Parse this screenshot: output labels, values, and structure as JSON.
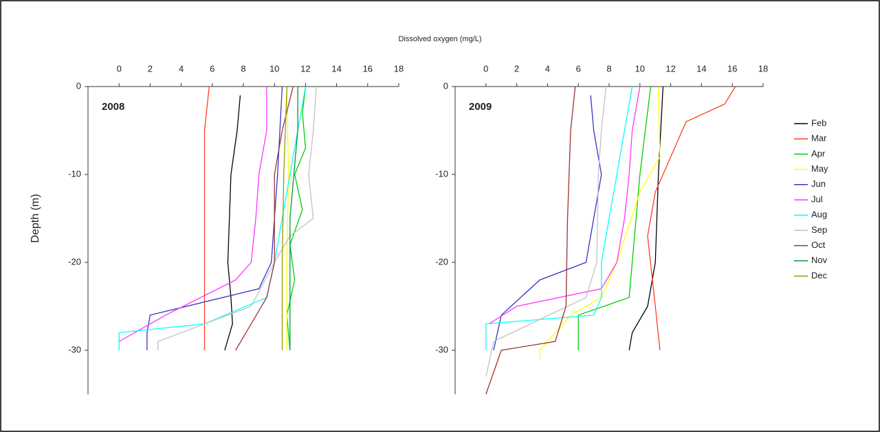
{
  "title": "Dissolved oxygen (mg/L)",
  "ylabel": "Depth (m)",
  "chart_data": [
    {
      "type": "line",
      "title": "2008",
      "xlim": [
        -2,
        18
      ],
      "xticks": [
        0,
        2,
        4,
        6,
        8,
        10,
        12,
        14,
        16,
        18
      ],
      "ylim": [
        -35,
        0
      ],
      "yticks": [
        0,
        -10,
        -20,
        -30
      ],
      "series": [
        {
          "name": "Feb",
          "color": "#000000",
          "x": [
            7.8,
            7.6,
            7.2,
            7.1,
            7,
            7.2,
            7.3,
            6.8
          ],
          "values": [
            -1,
            -5,
            -10,
            -15,
            -20,
            -24,
            -27,
            -30
          ]
        },
        {
          "name": "Mar",
          "color": "#ff3c1e",
          "x": [
            5.8,
            5.5,
            5.5
          ],
          "values": [
            0,
            -5,
            -30
          ]
        },
        {
          "name": "Apr",
          "color": "#00cc00",
          "x": [
            12,
            11.8,
            12,
            11.3,
            11.8,
            11,
            11.3,
            10.8,
            11
          ],
          "values": [
            0,
            -3,
            -7,
            -10,
            -14,
            -18,
            -22,
            -26,
            -30
          ]
        },
        {
          "name": "May",
          "color": "#ffff00",
          "x": [
            10.8,
            10.9,
            10.8,
            10.8
          ],
          "values": [
            0,
            -10,
            -20,
            -30
          ]
        },
        {
          "name": "Jun",
          "color": "#3333cc",
          "x": [
            10.5,
            10.2,
            9.8,
            9,
            2,
            1.8,
            1.8
          ],
          "values": [
            0,
            -10,
            -20,
            -23,
            -26,
            -28,
            -30
          ]
        },
        {
          "name": "Jul",
          "color": "#ff33ff",
          "x": [
            9.5,
            9.5,
            9,
            8.8,
            8.5,
            7.5,
            3,
            0
          ],
          "values": [
            0,
            -5,
            -10,
            -15,
            -20,
            -22,
            -26,
            -29
          ]
        },
        {
          "name": "Aug",
          "color": "#00ffff",
          "x": [
            12,
            11,
            10.5,
            10,
            9.5,
            5.5,
            0,
            0
          ],
          "values": [
            0,
            -10,
            -15,
            -20,
            -24,
            -27,
            -28,
            -30
          ]
        },
        {
          "name": "Sep",
          "color": "#c0c0c0",
          "x": [
            12.7,
            12.5,
            12.2,
            12.5,
            11,
            10,
            8.5,
            2.5,
            2.5
          ],
          "values": [
            0,
            -5,
            -10,
            -15,
            -17,
            -20,
            -25,
            -29,
            -30
          ]
        },
        {
          "name": "Oct",
          "color": "#993333",
          "x": [
            11.2,
            10.5,
            10,
            10,
            9.5,
            8.5,
            7.5
          ],
          "values": [
            0,
            -5,
            -10,
            -20,
            -24,
            -27,
            -30
          ]
        },
        {
          "name": "Nov",
          "color": "#009933",
          "x": [
            11.5,
            11.5,
            11,
            11
          ],
          "values": [
            0,
            -5,
            -15,
            -30
          ]
        },
        {
          "name": "Dec",
          "color": "#999900",
          "x": [
            10.8,
            10.6,
            10.5,
            10.5
          ],
          "values": [
            0,
            -10,
            -20,
            -30
          ]
        }
      ]
    },
    {
      "type": "line",
      "title": "2009",
      "xlim": [
        -2,
        18
      ],
      "xticks": [
        0,
        2,
        4,
        6,
        8,
        10,
        12,
        14,
        16,
        18
      ],
      "ylim": [
        -35,
        0
      ],
      "yticks": [
        0,
        -10,
        -20,
        -30
      ],
      "series": [
        {
          "name": "Feb",
          "color": "#000000",
          "x": [
            11.5,
            11.2,
            11,
            10.5,
            9.5,
            9.3
          ],
          "values": [
            0,
            -10,
            -20,
            -25,
            -28,
            -30
          ]
        },
        {
          "name": "Mar",
          "color": "#ff3c1e",
          "x": [
            16.2,
            15.5,
            13,
            12,
            11,
            10.5,
            11,
            11.3
          ],
          "values": [
            0,
            -2,
            -4,
            -8,
            -12,
            -17,
            -25,
            -30
          ]
        },
        {
          "name": "Apr",
          "color": "#00cc00",
          "x": [
            10.7,
            10,
            9.5,
            9.3,
            6,
            6
          ],
          "values": [
            0,
            -10,
            -20,
            -24,
            -26,
            -30
          ]
        },
        {
          "name": "May",
          "color": "#ffff00",
          "x": [
            11.2,
            11.3,
            10,
            8.5,
            7.5,
            5.5,
            3.5,
            3.5
          ],
          "values": [
            0,
            -8,
            -12,
            -20,
            -24,
            -26,
            -30,
            -31
          ]
        },
        {
          "name": "Jun",
          "color": "#3333cc",
          "x": [
            6.8,
            7,
            7.5,
            7,
            6.5,
            3.5,
            1,
            0.5
          ],
          "values": [
            -1,
            -5,
            -10,
            -15,
            -20,
            -22,
            -26,
            -30
          ]
        },
        {
          "name": "Jul",
          "color": "#ff33ff",
          "x": [
            10,
            9.5,
            9.3,
            9,
            8.5,
            7.5,
            2,
            0.2
          ],
          "values": [
            0,
            -5,
            -10,
            -15,
            -20,
            -23,
            -25,
            -27
          ]
        },
        {
          "name": "Aug",
          "color": "#00ffff",
          "x": [
            9.5,
            9,
            8.5,
            8,
            7.5,
            7.5,
            7,
            0,
            0
          ],
          "values": [
            0,
            -5,
            -10,
            -15,
            -20,
            -24,
            -26,
            -27,
            -30
          ]
        },
        {
          "name": "Sep",
          "color": "#c0c0c0",
          "x": [
            7.8,
            7.5,
            7.3,
            7.2,
            6.5,
            0.5,
            0
          ],
          "values": [
            0,
            -5,
            -10,
            -20,
            -24,
            -29,
            -33
          ]
        },
        {
          "name": "Oct",
          "color": "#993333",
          "x": [
            5.8,
            5.5,
            5.3,
            5.2,
            4.5,
            1,
            0
          ],
          "values": [
            0,
            -5,
            -15,
            -25,
            -29,
            -30,
            -35
          ]
        }
      ]
    }
  ]
}
